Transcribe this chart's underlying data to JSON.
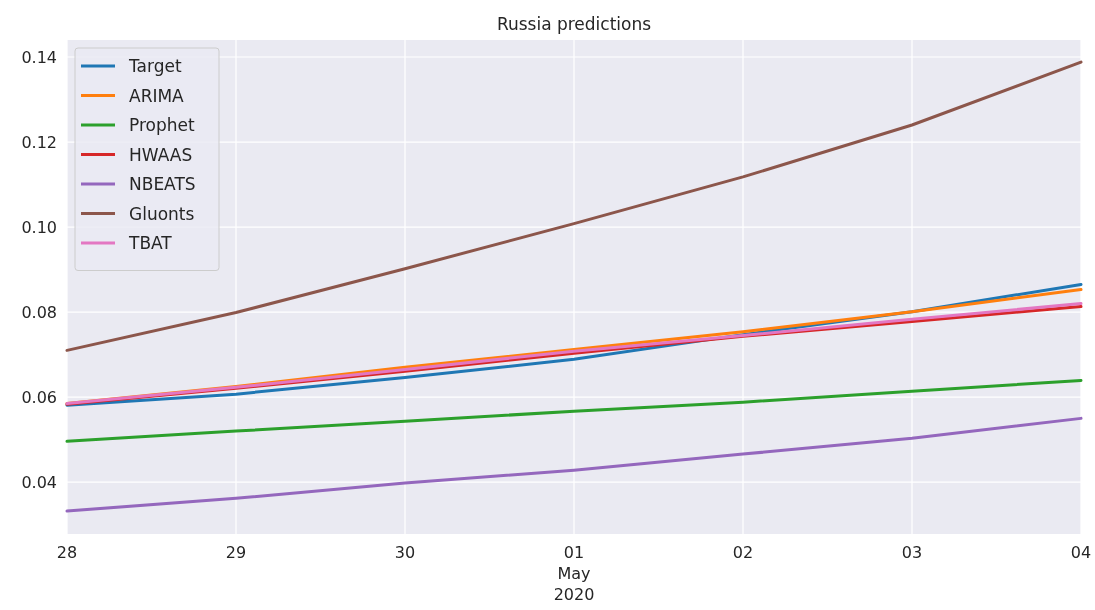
{
  "chart_data": {
    "type": "line",
    "title": "Russia predictions",
    "x": [
      "2020-04-28",
      "2020-04-29",
      "2020-04-30",
      "2020-05-01",
      "2020-05-02",
      "2020-05-03",
      "2020-05-04"
    ],
    "xlim": [
      "2020-04-28",
      "2020-05-04"
    ],
    "xticks": [
      {
        "value": "2020-04-28",
        "label": "28"
      },
      {
        "value": "2020-04-29",
        "label": "29"
      },
      {
        "value": "2020-04-30",
        "label": "30"
      },
      {
        "value": "2020-05-01",
        "label": "01\nMay\n2020"
      },
      {
        "value": "2020-05-02",
        "label": "02"
      },
      {
        "value": "2020-05-03",
        "label": "03"
      },
      {
        "value": "2020-05-04",
        "label": "04"
      }
    ],
    "ylim": [
      0.0278,
      0.144
    ],
    "yticks": [
      {
        "value": 0.04,
        "label": "0.04"
      },
      {
        "value": 0.06,
        "label": "0.06"
      },
      {
        "value": 0.08,
        "label": "0.08"
      },
      {
        "value": 0.1,
        "label": "0.10"
      },
      {
        "value": 0.12,
        "label": "0.12"
      },
      {
        "value": 0.14,
        "label": "0.14"
      }
    ],
    "grid": true,
    "legend": "top left",
    "marker": "none",
    "line_style": "solid",
    "series": [
      {
        "name": "Target",
        "color": "#1f77b4",
        "values": [
          0.0581,
          0.0607,
          0.0646,
          0.0689,
          0.0747,
          0.0801,
          0.0865
        ]
      },
      {
        "name": "ARIMA",
        "color": "#ff7f0e",
        "values": [
          0.0585,
          0.0625,
          0.067,
          0.0712,
          0.0754,
          0.0801,
          0.0853
        ]
      },
      {
        "name": "Prophet",
        "color": "#2ca02c",
        "values": [
          0.0496,
          0.052,
          0.0543,
          0.0567,
          0.0588,
          0.0614,
          0.0639
        ]
      },
      {
        "name": "HWAAS",
        "color": "#d62728",
        "values": [
          0.0583,
          0.0621,
          0.0661,
          0.0703,
          0.0743,
          0.0778,
          0.0813
        ]
      },
      {
        "name": "NBEATS",
        "color": "#9467bd",
        "values": [
          0.0332,
          0.0362,
          0.0398,
          0.0428,
          0.0466,
          0.0503,
          0.055
        ]
      },
      {
        "name": "Gluonts",
        "color": "#8c564b",
        "values": [
          0.071,
          0.0799,
          0.0902,
          0.1008,
          0.1118,
          0.124,
          0.1388
        ]
      },
      {
        "name": "TBAT",
        "color": "#e377c2",
        "values": [
          0.0585,
          0.0623,
          0.0665,
          0.0708,
          0.0745,
          0.0783,
          0.082
        ]
      }
    ]
  }
}
